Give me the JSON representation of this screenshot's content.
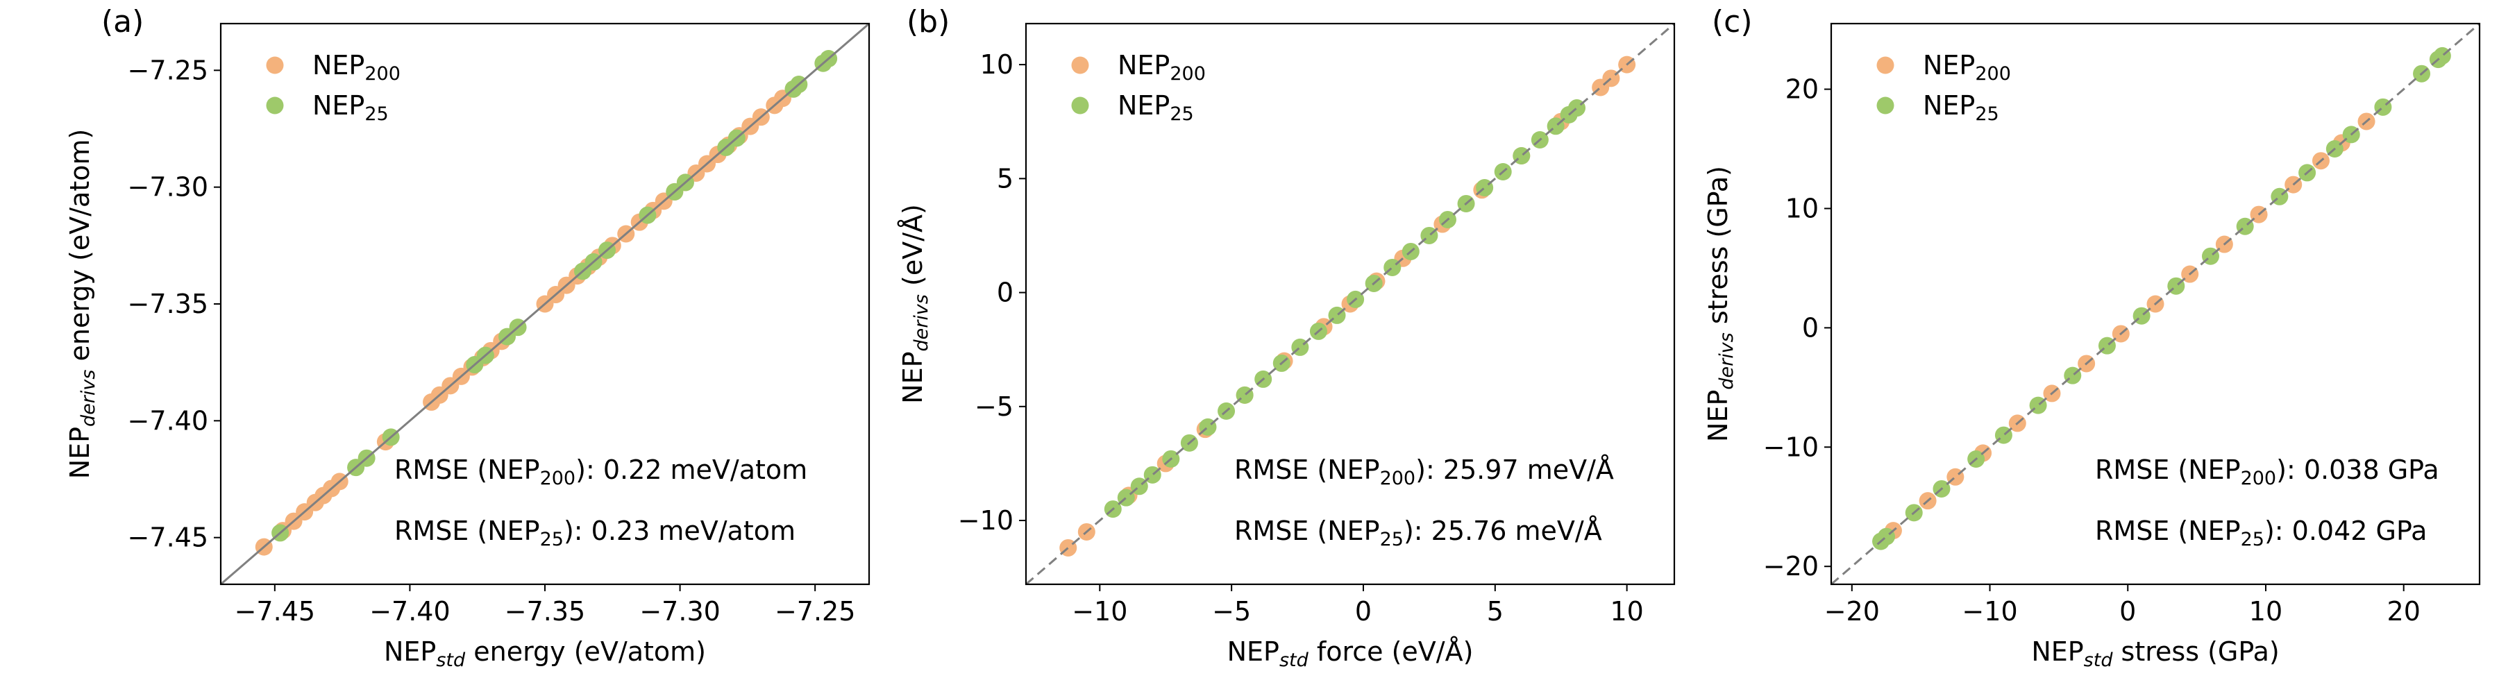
{
  "colors": {
    "nep200": "#f4b27c",
    "nep25": "#9ec96a",
    "identity": "#808080",
    "axes": "#000000"
  },
  "chart_data": [
    {
      "type": "scatter",
      "panel_label": "(a)",
      "xlabel": {
        "pre": "NEP",
        "sub": "std",
        "post": " energy (eV/atom)"
      },
      "ylabel": {
        "pre": "NEP",
        "sub": "derivs",
        "post": " energy (eV/atom)"
      },
      "xlim": [
        -7.47,
        -7.23
      ],
      "ylim": [
        -7.47,
        -7.23
      ],
      "xticks": [
        -7.45,
        -7.4,
        -7.35,
        -7.3,
        -7.25
      ],
      "yticks": [
        -7.45,
        -7.4,
        -7.35,
        -7.3,
        -7.25
      ],
      "tick_labels": [
        "−7.45",
        "−7.40",
        "−7.35",
        "−7.30",
        "−7.25"
      ],
      "identity_line": "solid",
      "legend": {
        "position": "top-left",
        "entries": [
          {
            "pre": "NEP",
            "sub": "200",
            "series": 0
          },
          {
            "pre": "NEP",
            "sub": "25",
            "series": 1
          }
        ]
      },
      "annotations": [
        {
          "pre": "RMSE (NEP",
          "sub": "200",
          "post": "): 0.22 meV/atom"
        },
        {
          "pre": "RMSE (NEP",
          "sub": "25",
          "post": "): 0.23 meV/atom"
        }
      ],
      "series": [
        {
          "color_key": "nep200",
          "x": [
            -7.454,
            -7.447,
            -7.443,
            -7.439,
            -7.435,
            -7.432,
            -7.429,
            -7.426,
            -7.392,
            -7.389,
            -7.385,
            -7.381,
            -7.377,
            -7.373,
            -7.37,
            -7.366,
            -7.35,
            -7.346,
            -7.342,
            -7.338,
            -7.334,
            -7.33,
            -7.325,
            -7.32,
            -7.315,
            -7.31,
            -7.306,
            -7.302,
            -7.298,
            -7.294,
            -7.29,
            -7.286,
            -7.282,
            -7.278,
            -7.274,
            -7.27,
            -7.265,
            -7.262,
            -7.258,
            -7.409
          ],
          "y": [
            -7.454,
            -7.447,
            -7.443,
            -7.439,
            -7.435,
            -7.432,
            -7.429,
            -7.426,
            -7.392,
            -7.389,
            -7.385,
            -7.381,
            -7.377,
            -7.373,
            -7.37,
            -7.366,
            -7.35,
            -7.346,
            -7.342,
            -7.338,
            -7.334,
            -7.33,
            -7.325,
            -7.32,
            -7.315,
            -7.31,
            -7.306,
            -7.302,
            -7.298,
            -7.294,
            -7.29,
            -7.286,
            -7.282,
            -7.278,
            -7.274,
            -7.27,
            -7.265,
            -7.262,
            -7.258,
            -7.409
          ]
        },
        {
          "color_key": "nep25",
          "x": [
            -7.448,
            -7.42,
            -7.416,
            -7.376,
            -7.372,
            -7.364,
            -7.36,
            -7.336,
            -7.332,
            -7.327,
            -7.312,
            -7.302,
            -7.298,
            -7.283,
            -7.279,
            -7.258,
            -7.256,
            -7.247,
            -7.245,
            -7.407
          ],
          "y": [
            -7.448,
            -7.42,
            -7.416,
            -7.376,
            -7.372,
            -7.364,
            -7.36,
            -7.336,
            -7.332,
            -7.327,
            -7.312,
            -7.302,
            -7.298,
            -7.283,
            -7.279,
            -7.258,
            -7.256,
            -7.247,
            -7.245,
            -7.407
          ]
        }
      ]
    },
    {
      "type": "scatter",
      "panel_label": "(b)",
      "xlabel": {
        "pre": "NEP",
        "sub": "std",
        "post": " force (eV/Å)"
      },
      "ylabel": {
        "pre": "NEP",
        "sub": "derivs",
        "post": " (eV/Å)"
      },
      "xlim": [
        -12.8,
        11.8
      ],
      "ylim": [
        -12.8,
        11.8
      ],
      "xticks": [
        -10,
        -5,
        0,
        5,
        10
      ],
      "yticks": [
        -10,
        -5,
        0,
        5,
        10
      ],
      "tick_labels": [
        "−10",
        "−5",
        "0",
        "5",
        "10"
      ],
      "identity_line": "dashed",
      "legend": {
        "position": "top-left",
        "entries": [
          {
            "pre": "NEP",
            "sub": "200",
            "series": 0
          },
          {
            "pre": "NEP",
            "sub": "25",
            "series": 1
          }
        ]
      },
      "annotations": [
        {
          "pre": "RMSE (NEP",
          "sub": "200",
          "post": "): 25.97 meV/Å"
        },
        {
          "pre": "RMSE (NEP",
          "sub": "25",
          "post": "): 25.76 meV/Å"
        }
      ],
      "series": [
        {
          "color_key": "nep200",
          "x": [
            -11.2,
            -10.5,
            -8.9,
            -7.5,
            -6.0,
            -4.5,
            -3.0,
            -1.5,
            -0.5,
            0.5,
            1.5,
            3.0,
            4.5,
            6.0,
            7.5,
            9.0,
            9.4,
            10.0
          ],
          "y": [
            -11.2,
            -10.5,
            -8.9,
            -7.5,
            -6.0,
            -4.5,
            -3.0,
            -1.5,
            -0.5,
            0.5,
            1.5,
            3.0,
            4.5,
            6.0,
            7.5,
            9.0,
            9.4,
            10.0
          ]
        },
        {
          "color_key": "nep25",
          "x": [
            -9.5,
            -9.0,
            -8.5,
            -8.0,
            -7.3,
            -6.6,
            -5.9,
            -5.2,
            -4.5,
            -3.8,
            -3.1,
            -2.4,
            -1.7,
            -1.0,
            -0.3,
            0.4,
            1.1,
            1.8,
            2.5,
            3.2,
            3.9,
            4.6,
            5.3,
            6.0,
            6.7,
            7.3,
            7.8,
            8.1
          ],
          "y": [
            -9.5,
            -9.0,
            -8.5,
            -8.0,
            -7.3,
            -6.6,
            -5.9,
            -5.2,
            -4.5,
            -3.8,
            -3.1,
            -2.4,
            -1.7,
            -1.0,
            -0.3,
            0.4,
            1.1,
            1.8,
            2.5,
            3.2,
            3.9,
            4.6,
            5.3,
            6.0,
            6.7,
            7.3,
            7.8,
            8.1
          ]
        }
      ]
    },
    {
      "type": "scatter",
      "panel_label": "(c)",
      "xlabel": {
        "pre": "NEP",
        "sub": "std",
        "post": " stress (GPa)"
      },
      "ylabel": {
        "pre": "NEP",
        "sub": "derivs",
        "post": " stress (GPa)"
      },
      "xlim": [
        -21.5,
        25.5
      ],
      "ylim": [
        -21.5,
        25.5
      ],
      "xticks": [
        -20,
        -10,
        0,
        10,
        20
      ],
      "yticks": [
        -20,
        -10,
        0,
        10,
        20
      ],
      "tick_labels": [
        "−20",
        "−10",
        "0",
        "10",
        "20"
      ],
      "identity_line": "dashed",
      "legend": {
        "position": "top-left",
        "entries": [
          {
            "pre": "NEP",
            "sub": "200",
            "series": 0
          },
          {
            "pre": "NEP",
            "sub": "25",
            "series": 1
          }
        ]
      },
      "annotations": [
        {
          "pre": "RMSE (NEP",
          "sub": "200",
          "post": "): 0.038 GPa"
        },
        {
          "pre": "RMSE (NEP",
          "sub": "25",
          "post": "): 0.042 GPa"
        }
      ],
      "series": [
        {
          "color_key": "nep200",
          "x": [
            -17.0,
            -14.5,
            -12.5,
            -10.5,
            -8.0,
            -5.5,
            -3.0,
            -0.5,
            2.0,
            4.5,
            7.0,
            9.5,
            12.0,
            14.0,
            15.5,
            17.3
          ],
          "y": [
            -17.0,
            -14.5,
            -12.5,
            -10.5,
            -8.0,
            -5.5,
            -3.0,
            -0.5,
            2.0,
            4.5,
            7.0,
            9.5,
            12.0,
            14.0,
            15.5,
            17.3
          ]
        },
        {
          "color_key": "nep25",
          "x": [
            -17.9,
            -17.5,
            -15.5,
            -13.5,
            -11.0,
            -9.0,
            -6.5,
            -4.0,
            -1.5,
            1.0,
            3.5,
            6.0,
            8.5,
            11.0,
            13.0,
            15.0,
            16.2,
            18.5,
            21.3,
            22.5,
            22.8
          ],
          "y": [
            -17.9,
            -17.5,
            -15.5,
            -13.5,
            -11.0,
            -9.0,
            -6.5,
            -4.0,
            -1.5,
            1.0,
            3.5,
            6.0,
            8.5,
            11.0,
            13.0,
            15.0,
            16.2,
            18.5,
            21.3,
            22.5,
            22.8
          ]
        }
      ]
    }
  ]
}
